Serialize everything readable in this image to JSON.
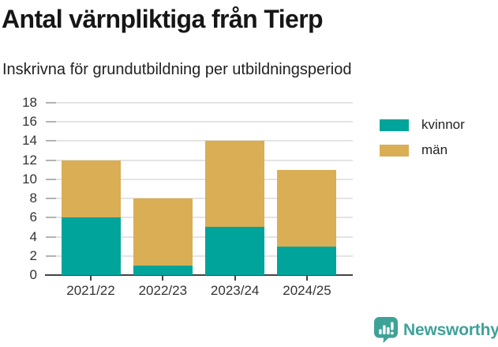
{
  "chart_data": {
    "type": "bar",
    "stacked": true,
    "title": "Antal värnpliktiga från Tierp",
    "subtitle": "Inskrivna för grundutbildning per utbildningsperiod",
    "categories": [
      "2021/22",
      "2022/23",
      "2023/24",
      "2024/25"
    ],
    "series": [
      {
        "name": "kvinnor",
        "color": "#00a49a",
        "values": [
          6,
          1,
          5,
          3
        ]
      },
      {
        "name": "män",
        "color": "#d9ae55",
        "values": [
          6,
          7,
          9,
          8
        ]
      }
    ],
    "totals": [
      12,
      8,
      14,
      11
    ],
    "xlabel": "",
    "ylabel": "",
    "ylim": [
      0,
      18
    ],
    "yticks": [
      0,
      2,
      4,
      6,
      8,
      10,
      12,
      14,
      16,
      18
    ],
    "grid": "horizontal",
    "legend_position": "right"
  },
  "footer": {
    "brand": "Newsworthy",
    "brand_color": "#3fa299"
  }
}
